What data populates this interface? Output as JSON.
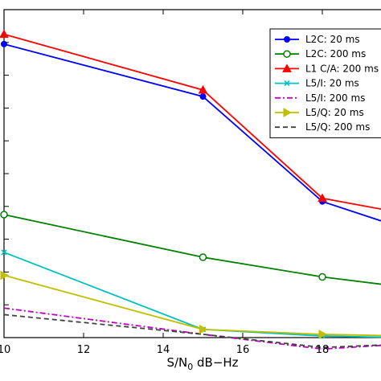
{
  "chart_data": {
    "type": "line",
    "xlabel": "S/N",
    "xlabel_sub": "0",
    "xlabel_suffix": " dB−Hz",
    "ylabel": "",
    "xlim": [
      10,
      20
    ],
    "ylim": [
      0,
      1
    ],
    "x_ticks": [
      "10",
      "12",
      "14",
      "16",
      "18"
    ],
    "grid": false,
    "legend_position": "top-right",
    "series": [
      {
        "name": "L2C: 20 ms",
        "color": "#0000ff",
        "marker": "circle",
        "dash": "solid",
        "x": [
          10,
          15,
          18,
          20
        ],
        "y": [
          0.895,
          0.735,
          0.415,
          0.335
        ]
      },
      {
        "name": "L2C: 200 ms",
        "color": "#008000",
        "marker": "circle-open",
        "dash": "solid",
        "x": [
          10,
          15,
          18,
          20
        ],
        "y": [
          0.375,
          0.245,
          0.185,
          0.155
        ]
      },
      {
        "name": "L1 C/A: 200 ms",
        "color": "#ff0000",
        "marker": "triangle",
        "dash": "solid",
        "x": [
          10,
          15,
          18,
          20
        ],
        "y": [
          0.925,
          0.755,
          0.425,
          0.38
        ]
      },
      {
        "name": "L5/I: 20 ms",
        "color": "#00bfbf",
        "marker": "x",
        "dash": "solid",
        "x": [
          10,
          15,
          18,
          20
        ],
        "y": [
          0.26,
          0.025,
          0.005,
          0.0
        ]
      },
      {
        "name": "L5/I: 200 ms",
        "color": "#bf00bf",
        "marker": "none",
        "dash": "dashdot",
        "x": [
          10,
          15,
          18,
          20
        ],
        "y": [
          0.09,
          0.01,
          -0.035,
          -0.02
        ]
      },
      {
        "name": "L5/Q: 20 ms",
        "color": "#bfbf00",
        "marker": "triangle-right",
        "dash": "solid",
        "x": [
          10,
          15,
          18,
          20
        ],
        "y": [
          0.19,
          0.025,
          0.01,
          0.005
        ]
      },
      {
        "name": "L5/Q: 200 ms",
        "color": "#404040",
        "marker": "none",
        "dash": "dashed",
        "x": [
          10,
          15,
          18,
          20
        ],
        "y": [
          0.07,
          0.01,
          -0.03,
          -0.02
        ]
      }
    ]
  }
}
